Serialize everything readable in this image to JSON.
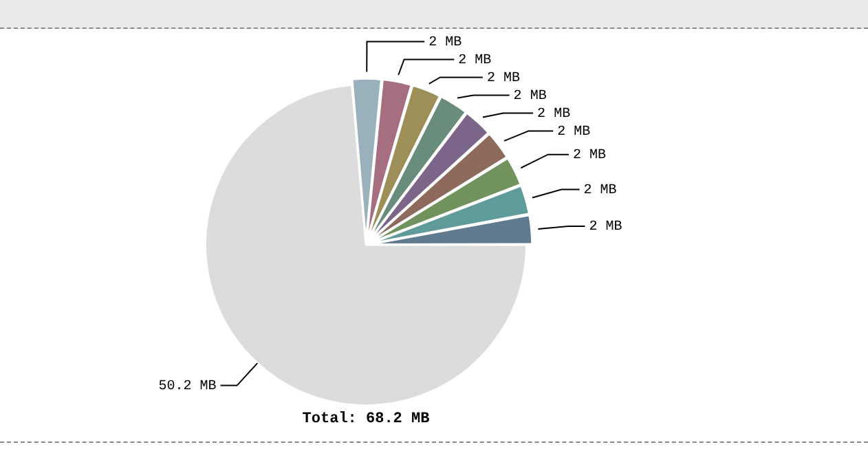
{
  "chart_data": {
    "type": "pie",
    "title": "Total: 68.2 MB",
    "categories": [
      null,
      null,
      null,
      null,
      null,
      null,
      null,
      null,
      null,
      null
    ],
    "values": [
      2,
      2,
      2,
      2,
      2,
      2,
      2,
      2,
      2,
      50.2
    ],
    "value_labels": [
      "2 MB",
      "2 MB",
      "2 MB",
      "2 MB",
      "2 MB",
      "2 MB",
      "2 MB",
      "2 MB",
      "2 MB",
      "50.2 MB"
    ],
    "colors": [
      "#9ab1bb",
      "#a56f7f",
      "#9c8f57",
      "#6a8c7c",
      "#7b6689",
      "#8e6a5c",
      "#71925c",
      "#5f9b98",
      "#607b90",
      "#dcdcdc"
    ]
  }
}
